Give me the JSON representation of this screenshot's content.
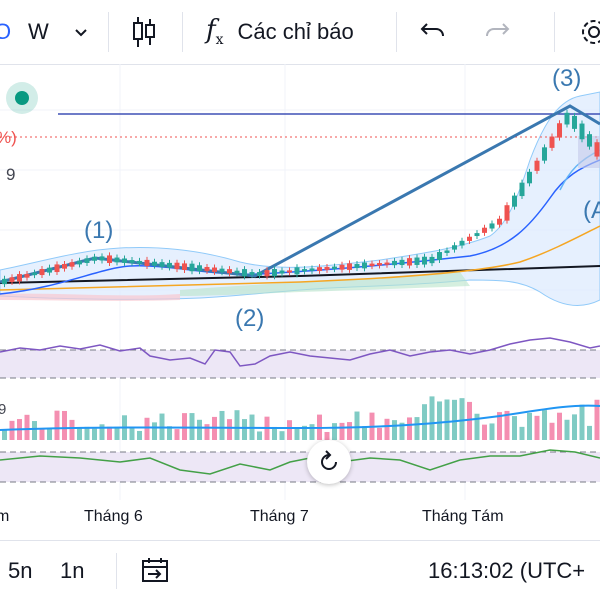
{
  "toolbar": {
    "symbol_fragment": "O",
    "interval": "W",
    "indicators_label": "Các chỉ báo"
  },
  "chart": {
    "price_fragment_pct": "%)",
    "price_fragment_num": "9",
    "wave_labels": [
      "(1)",
      "(2)",
      "(3)",
      "(A"
    ],
    "rsi_level_label": "9",
    "time_axis": [
      "m",
      "Tháng 6",
      "Tháng 7",
      "Tháng Tám"
    ]
  },
  "bottom_bar": {
    "range_5y": "5n",
    "range_1y": "1n",
    "clock": "16:13:02 (UTC+"
  },
  "colors": {
    "up": "#26a69a",
    "down": "#ef5350",
    "line_blue": "#2962ff",
    "wave_blue": "#3a78b0",
    "rsi_purple": "#7e57c2",
    "rsi_bg": "#ede7f6"
  },
  "icons": [
    "chevron-down-icon",
    "candles-icon",
    "fx-icon",
    "undo-icon",
    "redo-icon",
    "gear-icon",
    "calendar-range-icon",
    "reset-icon"
  ]
}
